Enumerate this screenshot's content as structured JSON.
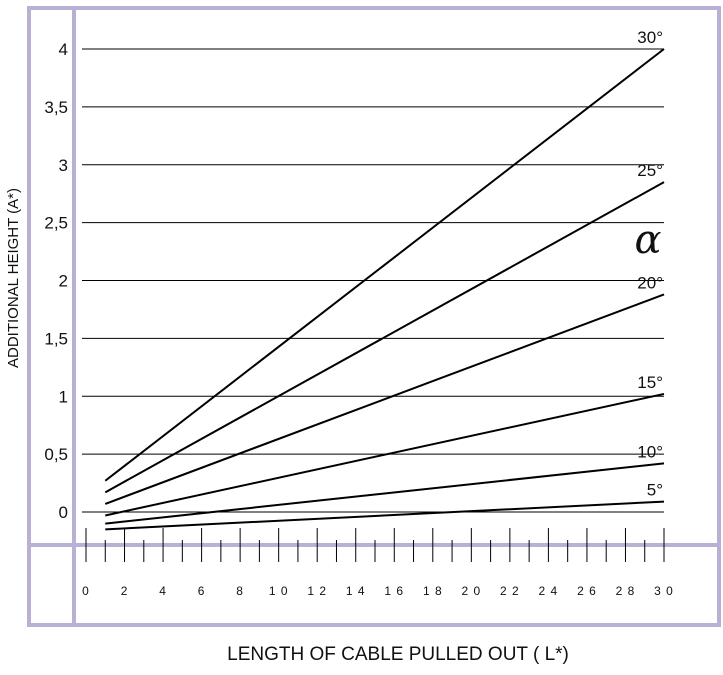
{
  "chart_data": {
    "type": "line",
    "xlabel": "LENGTH OF CABLE PULLED OUT ( L*)",
    "ylabel": "ADDITIONAL HEIGHT (A*)",
    "angle_symbol": "α",
    "x_ticks": [
      0,
      2,
      4,
      6,
      8,
      10,
      12,
      14,
      16,
      18,
      20,
      22,
      24,
      26,
      28,
      30
    ],
    "x_tick_labels": [
      "0",
      "2",
      "4",
      "6",
      "8",
      "1 0",
      "1 2",
      "1 4",
      "1 6",
      "1 8",
      "2 0",
      "2 2",
      "2 4",
      "2 6",
      "2 8",
      "3 0"
    ],
    "y_ticks": [
      0,
      0.5,
      1,
      1.5,
      2,
      2.5,
      3,
      3.5,
      4
    ],
    "y_tick_labels": [
      "0",
      "0,5",
      "1",
      "1,5",
      "2",
      "2,5",
      "3",
      "3,5",
      "4"
    ],
    "xlim": [
      0,
      30
    ],
    "ylim": [
      0,
      4
    ],
    "grid": "horizontal",
    "series": [
      {
        "name": "30°",
        "x": [
          1,
          30
        ],
        "y": [
          0.27,
          4.0
        ]
      },
      {
        "name": "25°",
        "x": [
          1,
          30
        ],
        "y": [
          0.17,
          2.85
        ]
      },
      {
        "name": "20°",
        "x": [
          1,
          30
        ],
        "y": [
          0.07,
          1.88
        ]
      },
      {
        "name": "15°",
        "x": [
          1,
          30
        ],
        "y": [
          -0.03,
          1.02
        ]
      },
      {
        "name": "10°",
        "x": [
          1,
          30
        ],
        "y": [
          -0.1,
          0.42
        ]
      },
      {
        "name": "5°",
        "x": [
          1,
          30
        ],
        "y": [
          -0.15,
          0.09
        ]
      }
    ]
  }
}
